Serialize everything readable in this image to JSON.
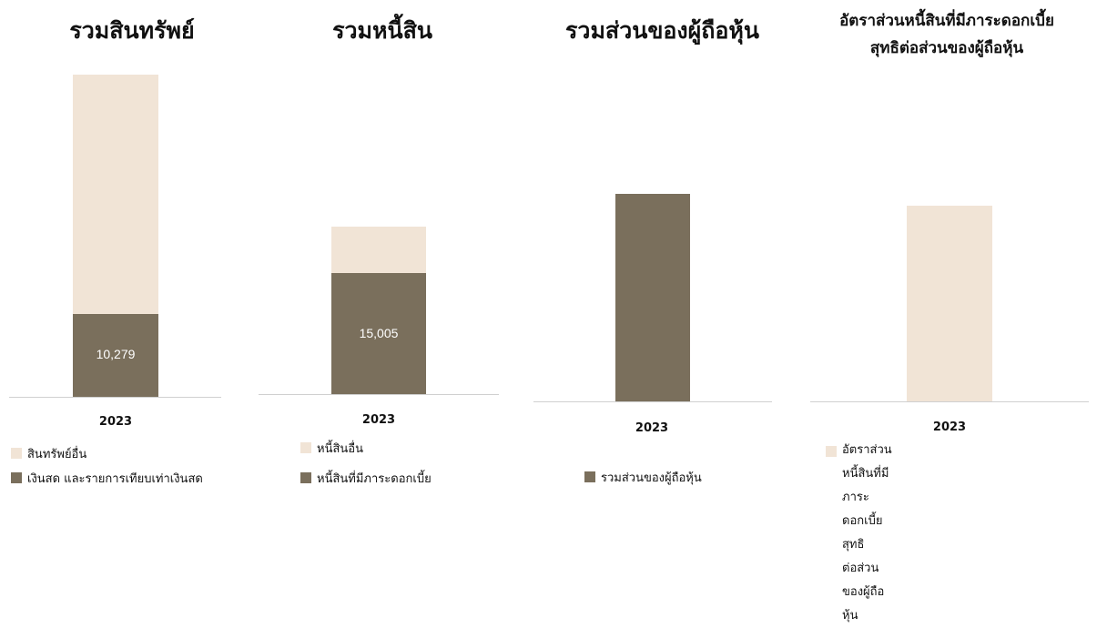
{
  "colors": {
    "light": "#f1e4d6",
    "dark": "#7a6f5c",
    "baseline": "#d0d0d0"
  },
  "chart_data": [
    {
      "type": "bar",
      "stacked": true,
      "title": "รวมสินทรัพย์",
      "categories": [
        "2023"
      ],
      "ylim": [
        0,
        40000
      ],
      "series": [
        {
          "name": "เงินสด และรายการเทียบเท่าเงินสด",
          "values": [
            10279
          ],
          "color": "#7a6f5c",
          "label": "10,279"
        },
        {
          "name": "สินทรัพย์อื่น",
          "values": [
            29700
          ],
          "color": "#f1e4d6",
          "label": ""
        }
      ],
      "legend": [
        "สินทรัพย์อื่น",
        "เงินสด และรายการเทียบเท่าเงินสด"
      ],
      "grid": false
    },
    {
      "type": "bar",
      "stacked": true,
      "title": "รวมหนี้สิน",
      "categories": [
        "2023"
      ],
      "ylim": [
        0,
        40000
      ],
      "series": [
        {
          "name": "หนี้สินที่มีภาระดอกเบี้ย",
          "values": [
            15005
          ],
          "color": "#7a6f5c",
          "label": "15,005"
        },
        {
          "name": "หนี้สินอื่น",
          "values": [
            5800
          ],
          "color": "#f1e4d6",
          "label": ""
        }
      ],
      "legend": [
        "หนี้สินอื่น",
        "หนี้สินที่มีภาระดอกเบี้ย"
      ],
      "grid": false
    },
    {
      "type": "bar",
      "stacked": true,
      "title": "รวมส่วนของผู้ถือหุ้น",
      "categories": [
        "2023"
      ],
      "ylim": [
        0,
        40000
      ],
      "series": [
        {
          "name": "รวมส่วนของผู้ถือหุ้น",
          "values": [
            25700
          ],
          "color": "#7a6f5c",
          "label": ""
        }
      ],
      "legend": [
        "รวมส่วนของผู้ถือหุ้น"
      ],
      "grid": false
    },
    {
      "type": "bar",
      "stacked": true,
      "title": [
        "อัตราส่วนหนี้สินที่มีภาระดอกเบี้ย",
        "สุทธิต่อส่วนของผู้ถือหุ้น"
      ],
      "categories": [
        "2023"
      ],
      "ylim": [
        0,
        40000
      ],
      "series": [
        {
          "name": "อัตราส่วนหนี้สินที่มีภาระดอกเบี้ยสุทธิต่อส่วนของผู้ถือหุ้น",
          "values": [
            24300
          ],
          "color": "#f1e4d6",
          "label": ""
        }
      ],
      "legend": [
        "อัตราส่วนหนี้สินที่มีภาระดอกเบี้ยสุทธิต่อส่วนของผู้ถือหุ้น"
      ],
      "legend_lines": [
        "อัตราส่วนหนี้สินที่มีภาระดอกเบี้ยสุทธิ",
        "ต่อส่วนของผู้ถือหุ้น"
      ],
      "grid": false
    }
  ]
}
